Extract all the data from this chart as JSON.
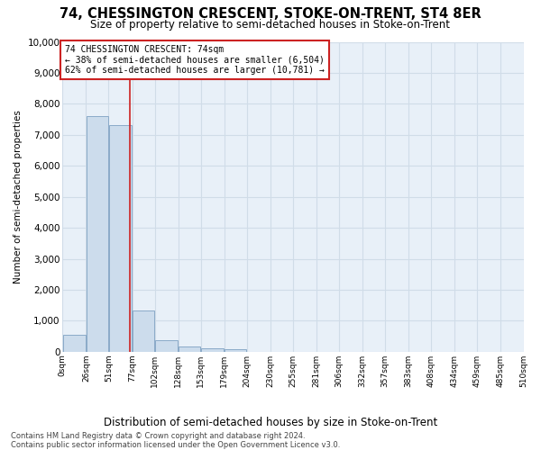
{
  "title": "74, CHESSINGTON CRESCENT, STOKE-ON-TRENT, ST4 8ER",
  "subtitle": "Size of property relative to semi-detached houses in Stoke-on-Trent",
  "xlabel": "Distribution of semi-detached houses by size in Stoke-on-Trent",
  "ylabel": "Number of semi-detached properties",
  "footer_line1": "Contains HM Land Registry data © Crown copyright and database right 2024.",
  "footer_line2": "Contains public sector information licensed under the Open Government Licence v3.0.",
  "annotation_title": "74 CHESSINGTON CRESCENT: 74sqm",
  "annotation_line1": "← 38% of semi-detached houses are smaller (6,504)",
  "annotation_line2": "62% of semi-detached houses are larger (10,781) →",
  "property_size": 74,
  "bar_edges": [
    0,
    26,
    51,
    77,
    102,
    128,
    153,
    179,
    204,
    230,
    255,
    281,
    306,
    332,
    357,
    383,
    408,
    434,
    459,
    485,
    510
  ],
  "bar_values": [
    550,
    7600,
    7300,
    1340,
    360,
    175,
    125,
    75,
    0,
    0,
    0,
    0,
    0,
    0,
    0,
    0,
    0,
    0,
    0,
    0
  ],
  "bar_color": "#ccdcec",
  "bar_edge_color": "#8aaac8",
  "property_line_color": "#cc2222",
  "annotation_box_edge_color": "#cc2222",
  "annotation_bg": "#ffffff",
  "grid_color": "#d0dce8",
  "axes_bg_color": "#e8f0f8",
  "ylim_max": 10000,
  "ytick_values": [
    0,
    1000,
    2000,
    3000,
    4000,
    5000,
    6000,
    7000,
    8000,
    9000,
    10000
  ]
}
